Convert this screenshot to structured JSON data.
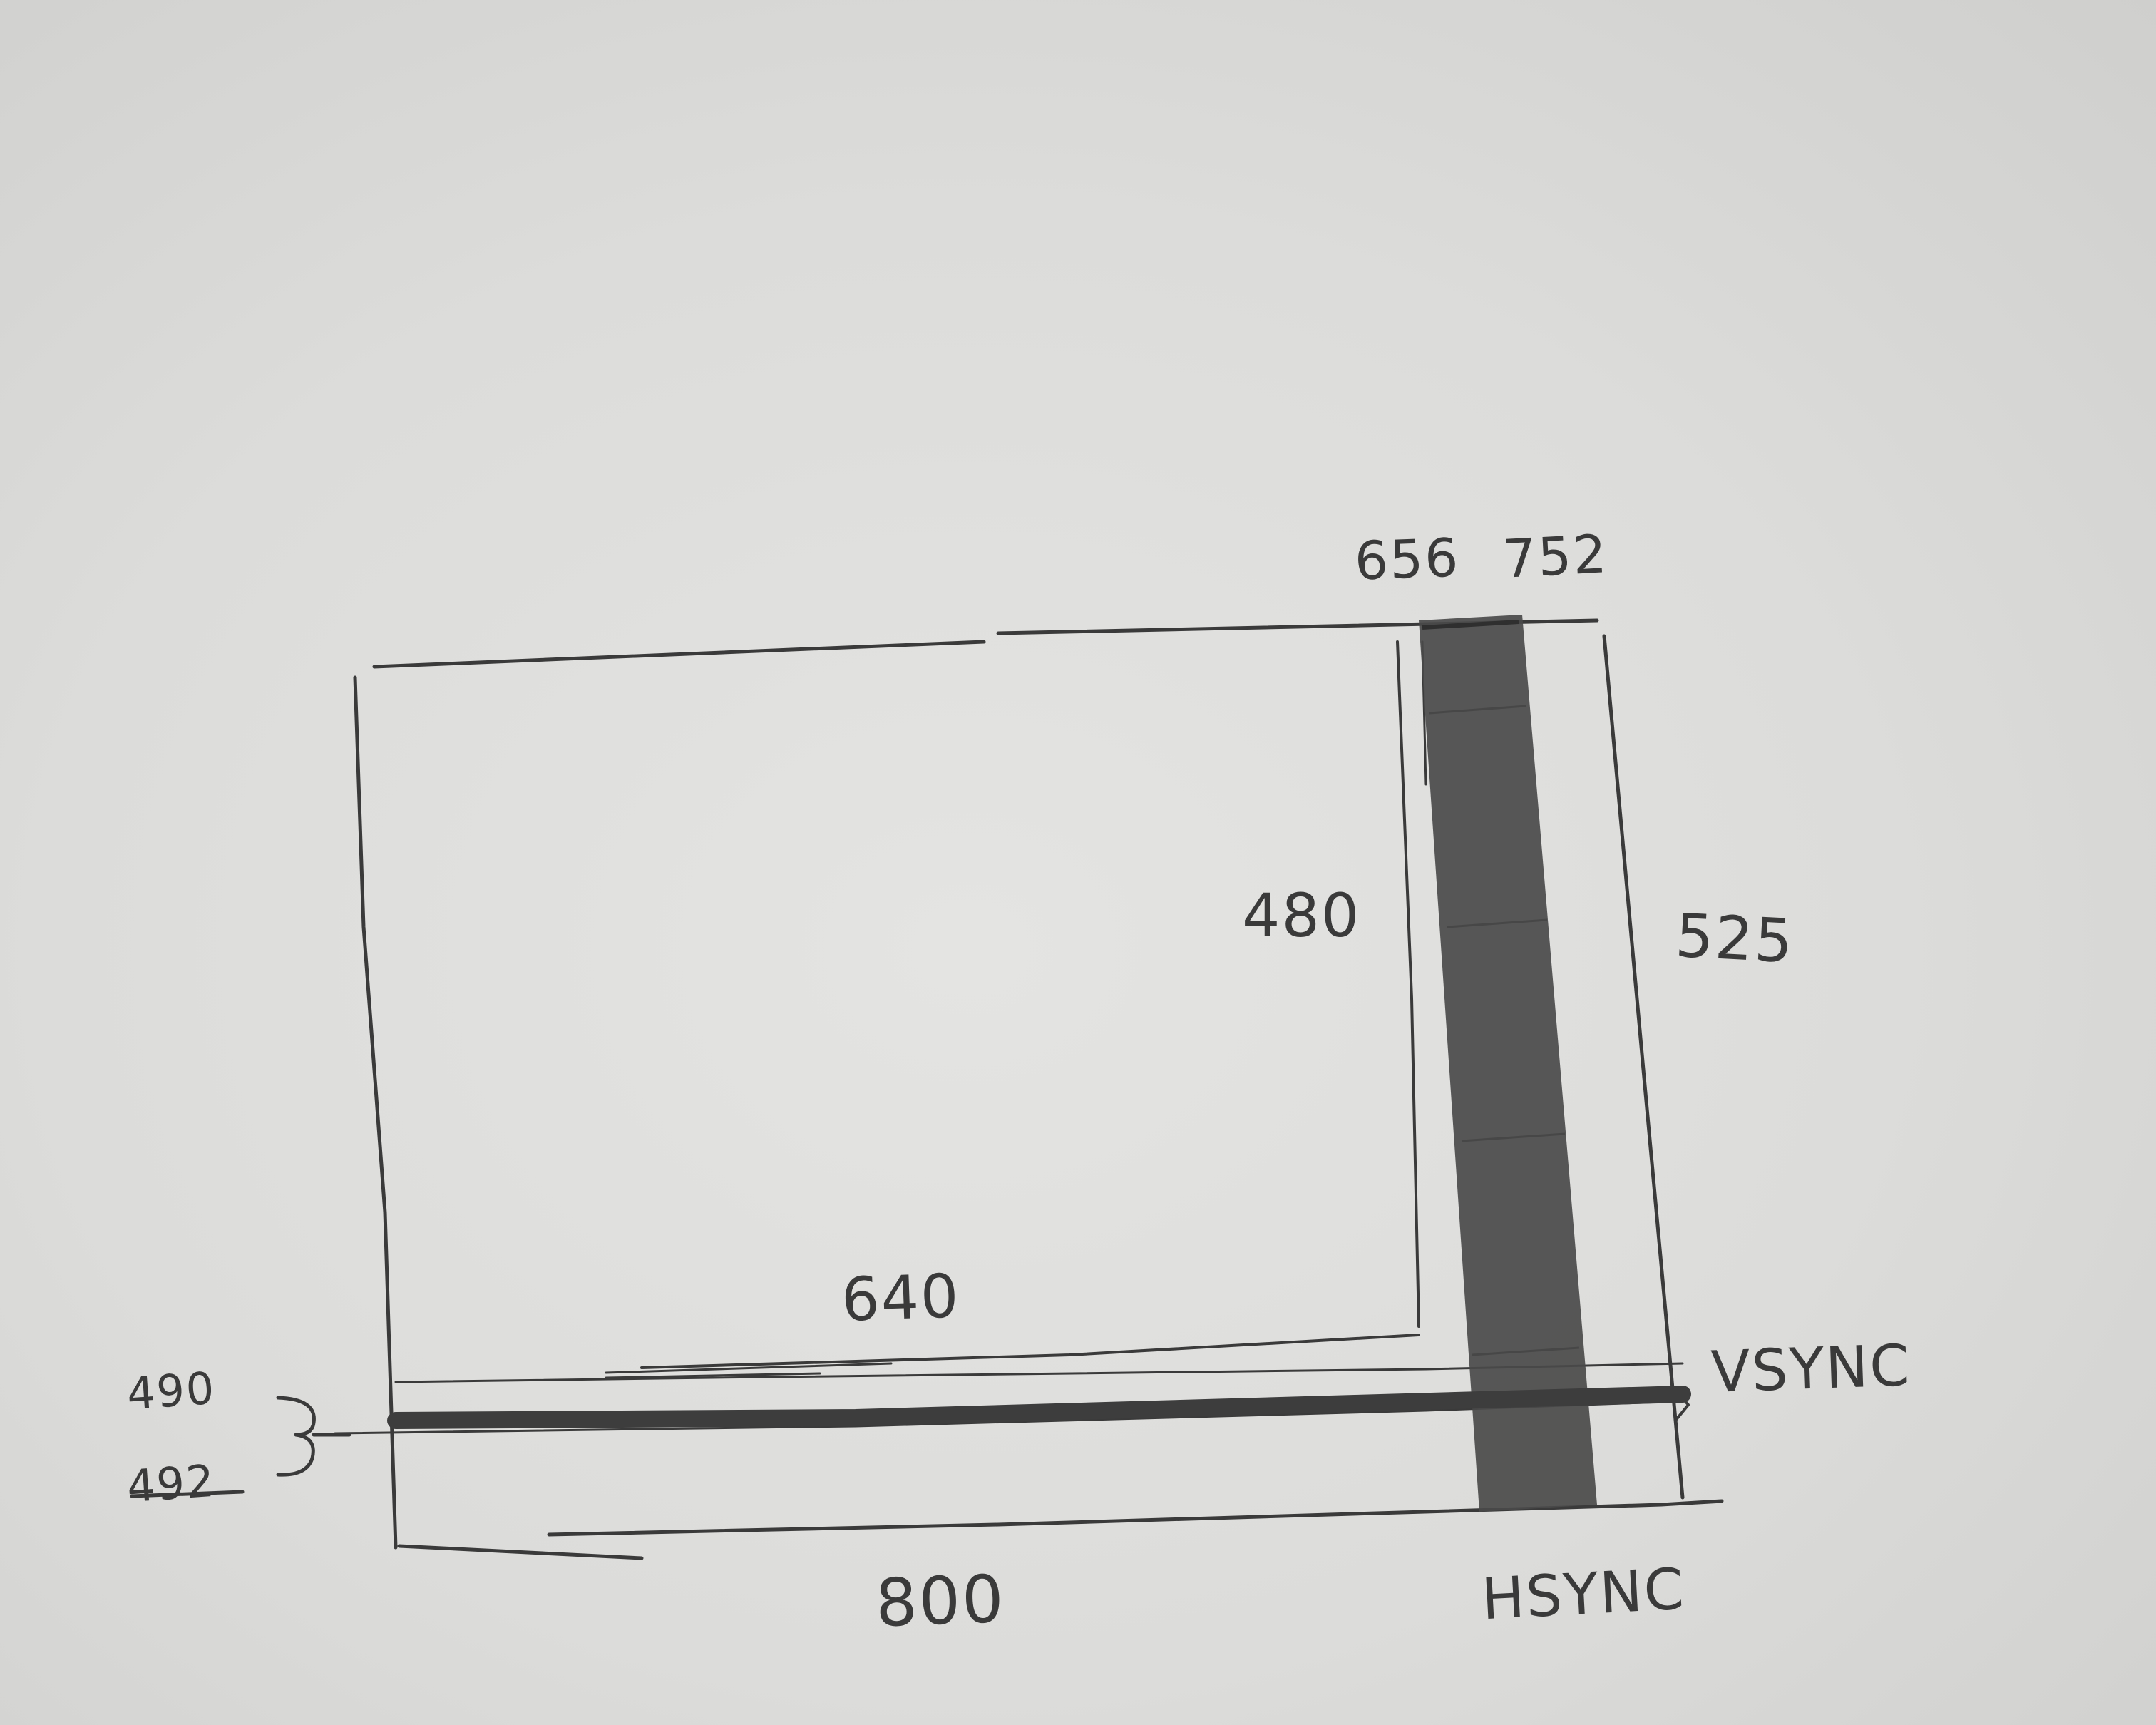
{
  "diagram": {
    "labels": {
      "h_sync_start": "656",
      "h_sync_end": "752",
      "v_visible": "480",
      "v_total": "525",
      "h_visible": "640",
      "vsync": "VSYNC",
      "v_sync_start": "490",
      "v_sync_end": "492",
      "h_total": "800",
      "hsync": "HSYNC"
    },
    "colors": {
      "paper": "#dcdcda",
      "pencil": "#3a3a3a",
      "shading": "#4a4a4a"
    }
  }
}
